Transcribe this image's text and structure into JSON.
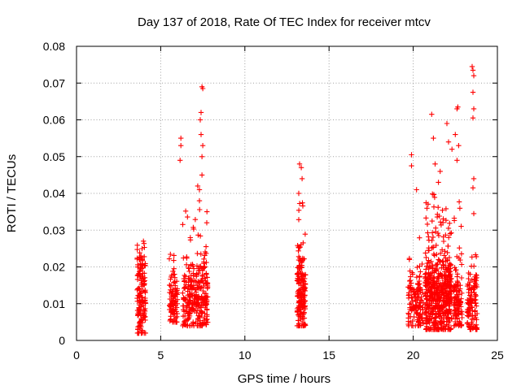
{
  "chart_data": {
    "type": "scatter",
    "title": "Day 137 of 2018, Rate Of TEC Index for receiver mtcv",
    "xlabel": "GPS time / hours",
    "ylabel": "ROTI / TECUs",
    "xlim": [
      0,
      25
    ],
    "ylim": [
      0,
      0.08
    ],
    "x_ticks": [
      0,
      5,
      10,
      15,
      20,
      25
    ],
    "x_tick_labels": [
      "0",
      "5",
      "10",
      "15",
      "20",
      "25"
    ],
    "y_ticks": [
      0,
      0.01,
      0.02,
      0.03,
      0.04,
      0.05,
      0.06,
      0.07,
      0.08
    ],
    "y_tick_labels": [
      "0",
      "0.01",
      "0.02",
      "0.03",
      "0.04",
      "0.05",
      "0.06",
      "0.07",
      "0.08"
    ],
    "grid": true,
    "marker": "+",
    "color": "#ff0000",
    "series": [
      {
        "name": "ROTI",
        "clusters": [
          {
            "x_range": [
              3.6,
              4.1
            ],
            "y_range": [
              0.002,
              0.027
            ],
            "y_center": 0.012,
            "count": 160
          },
          {
            "x_range": [
              5.5,
              6.0
            ],
            "y_range": [
              0.005,
              0.024
            ],
            "y_center": 0.011,
            "count": 100
          },
          {
            "x_range": [
              6.3,
              7.8
            ],
            "y_range": [
              0.004,
              0.036
            ],
            "y_center": 0.012,
            "count": 300
          },
          {
            "x_range": [
              13.1,
              13.6
            ],
            "y_range": [
              0.004,
              0.038
            ],
            "y_center": 0.013,
            "count": 180
          },
          {
            "x_range": [
              19.7,
              20.6
            ],
            "y_range": [
              0.004,
              0.03
            ],
            "y_center": 0.01,
            "count": 140
          },
          {
            "x_range": [
              20.7,
              22.3
            ],
            "y_range": [
              0.003,
              0.04
            ],
            "y_center": 0.012,
            "count": 550
          },
          {
            "x_range": [
              22.4,
              22.9
            ],
            "y_range": [
              0.004,
              0.038
            ],
            "y_center": 0.011,
            "count": 110
          },
          {
            "x_range": [
              23.2,
              23.8
            ],
            "y_range": [
              0.003,
              0.024
            ],
            "y_center": 0.01,
            "count": 120
          }
        ],
        "outliers": [
          {
            "x": 6.2,
            "y": 0.055
          },
          {
            "x": 6.2,
            "y": 0.053
          },
          {
            "x": 6.15,
            "y": 0.049
          },
          {
            "x": 7.45,
            "y": 0.069
          },
          {
            "x": 7.5,
            "y": 0.0685
          },
          {
            "x": 7.4,
            "y": 0.062
          },
          {
            "x": 7.35,
            "y": 0.06
          },
          {
            "x": 7.4,
            "y": 0.056
          },
          {
            "x": 7.5,
            "y": 0.053
          },
          {
            "x": 7.45,
            "y": 0.05
          },
          {
            "x": 7.2,
            "y": 0.042
          },
          {
            "x": 7.3,
            "y": 0.041
          },
          {
            "x": 7.45,
            "y": 0.045
          },
          {
            "x": 7.3,
            "y": 0.038
          },
          {
            "x": 13.25,
            "y": 0.048
          },
          {
            "x": 13.35,
            "y": 0.047
          },
          {
            "x": 13.4,
            "y": 0.044
          },
          {
            "x": 13.2,
            "y": 0.04
          },
          {
            "x": 19.9,
            "y": 0.0505
          },
          {
            "x": 19.9,
            "y": 0.0475
          },
          {
            "x": 20.2,
            "y": 0.041
          },
          {
            "x": 21.1,
            "y": 0.0615
          },
          {
            "x": 21.2,
            "y": 0.055
          },
          {
            "x": 21.3,
            "y": 0.048
          },
          {
            "x": 21.6,
            "y": 0.046
          },
          {
            "x": 21.5,
            "y": 0.043
          },
          {
            "x": 22.0,
            "y": 0.059
          },
          {
            "x": 22.1,
            "y": 0.054
          },
          {
            "x": 22.3,
            "y": 0.052
          },
          {
            "x": 22.6,
            "y": 0.063
          },
          {
            "x": 22.65,
            "y": 0.0635
          },
          {
            "x": 22.5,
            "y": 0.056
          },
          {
            "x": 22.7,
            "y": 0.053
          },
          {
            "x": 22.6,
            "y": 0.049
          },
          {
            "x": 23.5,
            "y": 0.0745
          },
          {
            "x": 23.55,
            "y": 0.0735
          },
          {
            "x": 23.6,
            "y": 0.072
          },
          {
            "x": 23.55,
            "y": 0.0675
          },
          {
            "x": 23.6,
            "y": 0.063
          },
          {
            "x": 23.55,
            "y": 0.0605
          },
          {
            "x": 23.6,
            "y": 0.044
          },
          {
            "x": 23.55,
            "y": 0.0415
          },
          {
            "x": 23.6,
            "y": 0.0345
          }
        ]
      }
    ]
  }
}
